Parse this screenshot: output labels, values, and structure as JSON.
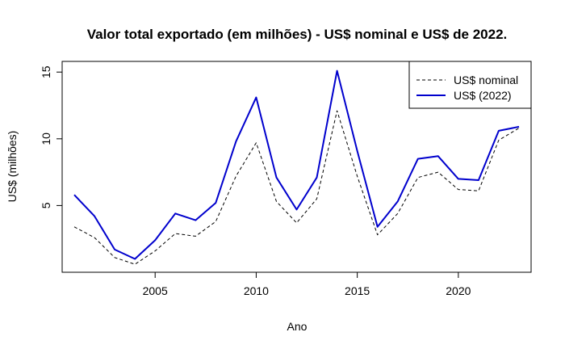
{
  "chart_data": {
    "type": "line",
    "title": "Valor total exportado (em milhões) - US$ nominal e US$ de 2022.",
    "xlabel": "Ano",
    "ylabel": "US$ (milhões)",
    "xlim": [
      2000.4,
      2023.6
    ],
    "ylim": [
      0.0,
      15.8
    ],
    "x_ticks": [
      2005,
      2010,
      2015,
      2020
    ],
    "y_ticks": [
      5,
      10,
      15
    ],
    "legend_position": "top-right",
    "grid": false,
    "x": [
      2001,
      2002,
      2003,
      2004,
      2005,
      2006,
      2007,
      2008,
      2009,
      2010,
      2011,
      2012,
      2013,
      2014,
      2015,
      2016,
      2017,
      2018,
      2019,
      2020,
      2021,
      2022,
      2023
    ],
    "series": [
      {
        "name": "US$ nominal",
        "color": "#000000",
        "style": "dashed",
        "values": [
          3.4,
          2.6,
          1.1,
          0.6,
          1.6,
          2.9,
          2.7,
          3.8,
          7.2,
          9.7,
          5.3,
          3.7,
          5.5,
          12.1,
          7.2,
          2.8,
          4.4,
          7.1,
          7.5,
          6.2,
          6.1,
          9.9,
          10.8
        ]
      },
      {
        "name": "US$ (2022)",
        "color": "#0000CD",
        "style": "solid",
        "values": [
          5.8,
          4.2,
          1.7,
          1.0,
          2.4,
          4.4,
          3.9,
          5.2,
          9.8,
          13.1,
          7.1,
          4.7,
          7.1,
          15.1,
          9.1,
          3.4,
          5.3,
          8.5,
          8.7,
          7.0,
          6.9,
          10.6,
          10.9
        ]
      }
    ]
  }
}
